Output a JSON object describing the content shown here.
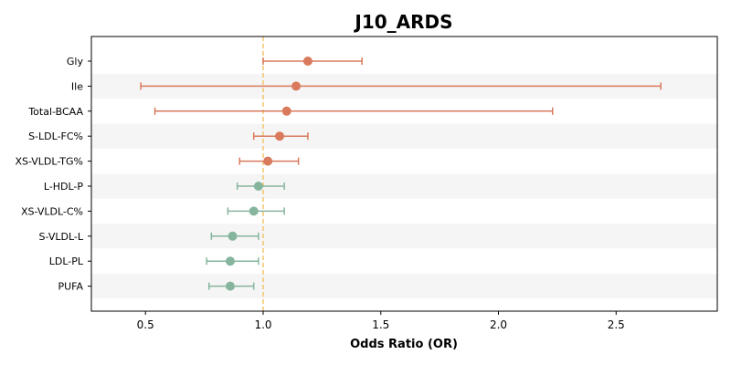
{
  "chart_data": {
    "type": "forest",
    "title": "J10_ARDS",
    "xlabel": "Odds Ratio (OR)",
    "ylabel": "",
    "xlim": [
      0.27,
      2.93
    ],
    "xticks": [
      0.5,
      1.0,
      1.5,
      2.0,
      2.5
    ],
    "xtick_labels": [
      "0.5",
      "1.0",
      "1.5",
      "2.0",
      "2.5"
    ],
    "reference_line": 1.0,
    "grid": false,
    "alternating_row_shading": true,
    "colors": {
      "risk": "#D97A5C",
      "protective": "#86B59E",
      "reference_line": "#F2C56B",
      "row_shade": "#F5F5F5"
    },
    "rows": [
      {
        "label": "Gly",
        "or": 1.19,
        "lower": 1.0,
        "upper": 1.42,
        "group": "risk"
      },
      {
        "label": "Ile",
        "or": 1.14,
        "lower": 0.48,
        "upper": 2.69,
        "group": "risk"
      },
      {
        "label": "Total-BCAA",
        "or": 1.1,
        "lower": 0.54,
        "upper": 2.23,
        "group": "risk"
      },
      {
        "label": "S-LDL-FC%",
        "or": 1.07,
        "lower": 0.96,
        "upper": 1.19,
        "group": "risk"
      },
      {
        "label": "XS-VLDL-TG%",
        "or": 1.02,
        "lower": 0.9,
        "upper": 1.15,
        "group": "risk"
      },
      {
        "label": "L-HDL-P",
        "or": 0.98,
        "lower": 0.89,
        "upper": 1.09,
        "group": "protective"
      },
      {
        "label": "XS-VLDL-C%",
        "or": 0.96,
        "lower": 0.85,
        "upper": 1.09,
        "group": "protective"
      },
      {
        "label": "S-VLDL-L",
        "or": 0.87,
        "lower": 0.78,
        "upper": 0.98,
        "group": "protective"
      },
      {
        "label": "LDL-PL",
        "or": 0.86,
        "lower": 0.76,
        "upper": 0.98,
        "group": "protective"
      },
      {
        "label": "PUFA",
        "or": 0.86,
        "lower": 0.77,
        "upper": 0.96,
        "group": "protective"
      }
    ]
  }
}
